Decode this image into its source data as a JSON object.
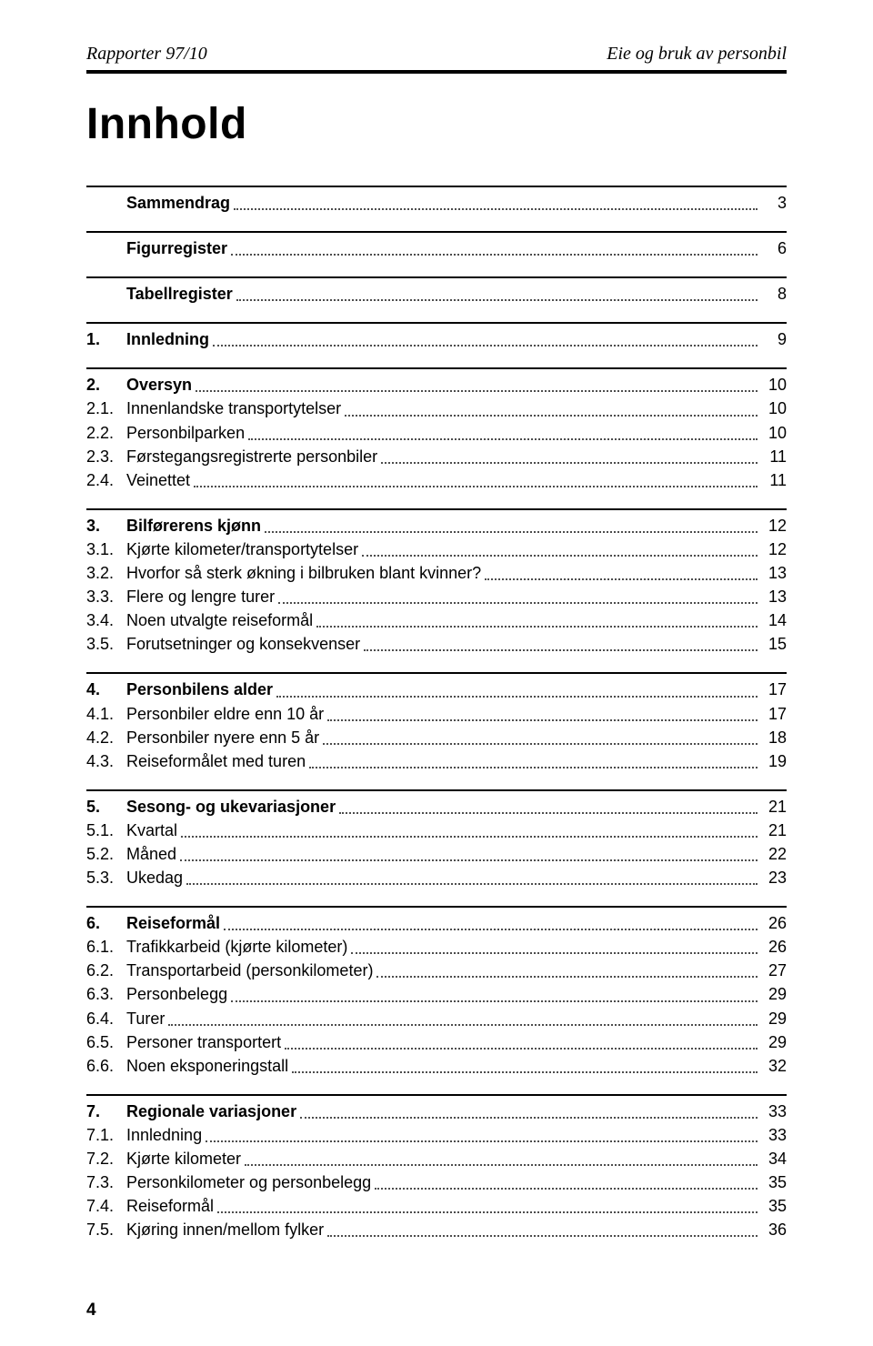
{
  "header": {
    "left": "Rapporter 97/10",
    "right": "Eie og bruk av personbil"
  },
  "title": "Innhold",
  "footer_page": "4",
  "sections": [
    {
      "rule": true,
      "lines": [
        {
          "num": "",
          "label": "Sammendrag",
          "bold": true,
          "page": "3"
        }
      ]
    },
    {
      "rule": true,
      "lines": [
        {
          "num": "",
          "label": "Figurregister",
          "bold": true,
          "page": "6"
        }
      ]
    },
    {
      "rule": true,
      "lines": [
        {
          "num": "",
          "label": "Tabellregister",
          "bold": true,
          "page": "8"
        }
      ]
    },
    {
      "rule": true,
      "lines": [
        {
          "num": "1. ",
          "label": "Innledning",
          "bold": true,
          "page": "9"
        }
      ]
    },
    {
      "rule": true,
      "lines": [
        {
          "num": "2. ",
          "label": "Oversyn",
          "bold": true,
          "page": "10"
        },
        {
          "num": "2.1. ",
          "label": "Innenlandske transportytelser",
          "bold": false,
          "page": "10"
        },
        {
          "num": "2.2. ",
          "label": "Personbilparken",
          "bold": false,
          "page": "10"
        },
        {
          "num": "2.3. ",
          "label": "Førstegangsregistrerte personbiler",
          "bold": false,
          "page": "11"
        },
        {
          "num": "2.4. ",
          "label": "Veinettet",
          "bold": false,
          "page": "11"
        }
      ]
    },
    {
      "rule": true,
      "lines": [
        {
          "num": "3. ",
          "label": "Bilførerens kjønn",
          "bold": true,
          "page": "12"
        },
        {
          "num": "3.1. ",
          "label": "Kjørte kilometer/transportytelser",
          "bold": false,
          "page": "12"
        },
        {
          "num": "3.2. ",
          "label": "Hvorfor så sterk økning i bilbruken blant kvinner?",
          "bold": false,
          "page": "13"
        },
        {
          "num": "3.3. ",
          "label": "Flere og lengre turer",
          "bold": false,
          "page": "13"
        },
        {
          "num": "3.4. ",
          "label": "Noen utvalgte reiseformål",
          "bold": false,
          "page": "14"
        },
        {
          "num": "3.5. ",
          "label": "Forutsetninger og konsekvenser",
          "bold": false,
          "page": "15"
        }
      ]
    },
    {
      "rule": true,
      "lines": [
        {
          "num": "4. ",
          "label": "Personbilens alder",
          "bold": true,
          "page": "17"
        },
        {
          "num": "4.1. ",
          "label": "Personbiler eldre enn 10 år",
          "bold": false,
          "page": "17"
        },
        {
          "num": "4.2. ",
          "label": "Personbiler nyere enn 5 år",
          "bold": false,
          "page": "18"
        },
        {
          "num": "4.3. ",
          "label": "Reiseformålet med turen",
          "bold": false,
          "page": "19"
        }
      ]
    },
    {
      "rule": true,
      "lines": [
        {
          "num": "5. ",
          "label": "Sesong- og ukevariasjoner",
          "bold": true,
          "page": "21"
        },
        {
          "num": "5.1. ",
          "label": "Kvartal",
          "bold": false,
          "page": "21"
        },
        {
          "num": "5.2. ",
          "label": "Måned",
          "bold": false,
          "page": "22"
        },
        {
          "num": "5.3. ",
          "label": "Ukedag",
          "bold": false,
          "page": "23"
        }
      ]
    },
    {
      "rule": true,
      "lines": [
        {
          "num": "6. ",
          "label": "Reiseformål",
          "bold": true,
          "page": "26"
        },
        {
          "num": "6.1. ",
          "label": "Trafikkarbeid (kjørte kilometer)",
          "bold": false,
          "page": "26"
        },
        {
          "num": "6.2. ",
          "label": "Transportarbeid (personkilometer)",
          "bold": false,
          "page": "27"
        },
        {
          "num": "6.3. ",
          "label": "Personbelegg",
          "bold": false,
          "page": "29"
        },
        {
          "num": "6.4. ",
          "label": "Turer",
          "bold": false,
          "page": "29"
        },
        {
          "num": "6.5. ",
          "label": "Personer transportert",
          "bold": false,
          "page": "29"
        },
        {
          "num": "6.6. ",
          "label": "Noen eksponeringstall",
          "bold": false,
          "page": "32"
        }
      ]
    },
    {
      "rule": true,
      "lines": [
        {
          "num": "7. ",
          "label": "Regionale variasjoner",
          "bold": true,
          "page": "33"
        },
        {
          "num": "7.1. ",
          "label": "Innledning",
          "bold": false,
          "page": "33"
        },
        {
          "num": "7.2. ",
          "label": "Kjørte kilometer",
          "bold": false,
          "page": "34"
        },
        {
          "num": "7.3. ",
          "label": "Personkilometer og personbelegg",
          "bold": false,
          "page": "35"
        },
        {
          "num": "7.4. ",
          "label": "Reiseformål",
          "bold": false,
          "page": "35"
        },
        {
          "num": "7.5. ",
          "label": "Kjøring innen/mellom fylker",
          "bold": false,
          "page": "36"
        }
      ]
    }
  ]
}
